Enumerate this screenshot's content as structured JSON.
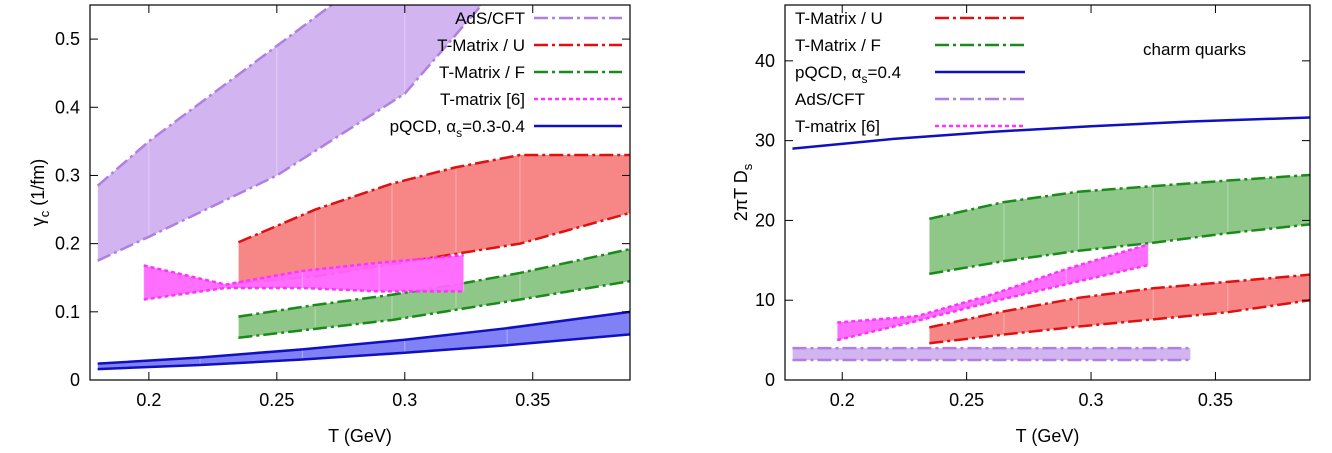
{
  "chart_data": [
    {
      "type": "area",
      "xlabel": "T (GeV)",
      "ylabel": "γc (1/fm)",
      "xlim": [
        0.177,
        0.388
      ],
      "ylim": [
        0,
        0.55
      ],
      "xticks": [
        0.2,
        0.25,
        0.3,
        0.35
      ],
      "yticks": [
        0,
        0.1,
        0.2,
        0.3,
        0.4,
        0.5
      ],
      "xtick_labels": [
        "0.2",
        "0.25",
        "0.3",
        "0.35"
      ],
      "ytick_labels": [
        "0",
        "0.1",
        "0.2",
        "0.3",
        "0.4",
        "0.5"
      ],
      "legend_position": "top-right",
      "series": [
        {
          "name": "AdS/CFT",
          "color": "#d0b0f0",
          "line_color": "#b080e0",
          "dash": "dashdot",
          "x": [
            0.18,
            0.2,
            0.25,
            0.3,
            0.33
          ],
          "lower": [
            0.175,
            0.21,
            0.3,
            0.42,
            0.55
          ],
          "upper": [
            0.285,
            0.35,
            0.49,
            0.63,
            0.72
          ]
        },
        {
          "name": "T-Matrix / U",
          "color": "#f77f7f",
          "line_color": "#e01010",
          "dash": "dashdot",
          "x": [
            0.235,
            0.265,
            0.295,
            0.32,
            0.345,
            0.388
          ],
          "lower": [
            0.142,
            0.152,
            0.17,
            0.185,
            0.2,
            0.245
          ],
          "upper": [
            0.202,
            0.25,
            0.288,
            0.312,
            0.33,
            0.33
          ]
        },
        {
          "name": "T-Matrix / F",
          "color": "#89c482",
          "line_color": "#1a8a1a",
          "dash": "dashdot",
          "x": [
            0.235,
            0.265,
            0.295,
            0.32,
            0.345,
            0.388
          ],
          "lower": [
            0.062,
            0.075,
            0.088,
            0.103,
            0.118,
            0.145
          ],
          "upper": [
            0.093,
            0.11,
            0.125,
            0.14,
            0.157,
            0.192
          ]
        },
        {
          "name": "T-matrix [6]",
          "color": "#ff66ff",
          "line_color": "#ff33ff",
          "dash": "dotted",
          "x": [
            0.198,
            0.23,
            0.26,
            0.29,
            0.323
          ],
          "lower": [
            0.118,
            0.135,
            0.135,
            0.13,
            0.13
          ],
          "upper": [
            0.168,
            0.14,
            0.16,
            0.172,
            0.183
          ]
        },
        {
          "name": "pQCD, αs=0.3-0.4",
          "color": "#7a7af5",
          "line_color": "#1010c0",
          "dash": "solid",
          "x": [
            0.18,
            0.22,
            0.26,
            0.3,
            0.34,
            0.388
          ],
          "lower": [
            0.016,
            0.022,
            0.03,
            0.04,
            0.051,
            0.067
          ],
          "upper": [
            0.024,
            0.033,
            0.045,
            0.059,
            0.076,
            0.1
          ]
        }
      ]
    },
    {
      "type": "area",
      "xlabel": "T (GeV)",
      "ylabel": "2πT Ds",
      "xlim": [
        0.177,
        0.388
      ],
      "ylim": [
        0,
        47
      ],
      "xticks": [
        0.2,
        0.25,
        0.3,
        0.35
      ],
      "yticks": [
        0,
        10,
        20,
        30,
        40
      ],
      "xtick_labels": [
        "0.2",
        "0.25",
        "0.3",
        "0.35"
      ],
      "ytick_labels": [
        "0",
        "10",
        "20",
        "30",
        "40"
      ],
      "annotation": "charm quarks",
      "legend_position": "top-left",
      "series": [
        {
          "name": "T-Matrix / U",
          "color": "#f77f7f",
          "line_color": "#e01010",
          "dash": "dashdot",
          "x": [
            0.235,
            0.265,
            0.295,
            0.325,
            0.355,
            0.388
          ],
          "lower": [
            4.6,
            5.7,
            6.7,
            7.6,
            8.5,
            10.0
          ],
          "upper": [
            6.6,
            8.6,
            10.3,
            11.5,
            12.3,
            13.2
          ]
        },
        {
          "name": "T-Matrix / F",
          "color": "#89c482",
          "line_color": "#1a8a1a",
          "dash": "dashdot",
          "x": [
            0.235,
            0.265,
            0.295,
            0.325,
            0.355,
            0.388
          ],
          "lower": [
            13.3,
            14.9,
            16.2,
            17.2,
            18.4,
            19.5
          ],
          "upper": [
            20.2,
            22.3,
            23.6,
            24.3,
            25.0,
            25.7
          ]
        },
        {
          "name": "pQCD, αs=0.4",
          "color": "#1010c0",
          "line_color": "#1010c0",
          "dash": "solid",
          "x": [
            0.18,
            0.22,
            0.26,
            0.3,
            0.34,
            0.388
          ],
          "values": [
            29.0,
            30.2,
            31.1,
            31.8,
            32.4,
            32.9
          ]
        },
        {
          "name": "AdS/CFT",
          "color": "#d0b0f0",
          "line_color": "#b080e0",
          "dash": "dashdot",
          "x": [
            0.18,
            0.34
          ],
          "lower": [
            2.5,
            2.5
          ],
          "upper": [
            4.0,
            4.0
          ]
        },
        {
          "name": "T-matrix [6]",
          "color": "#ff66ff",
          "line_color": "#ff33ff",
          "dash": "dotted",
          "x": [
            0.198,
            0.23,
            0.26,
            0.29,
            0.323
          ],
          "lower": [
            5.0,
            7.4,
            9.8,
            12.0,
            14.4
          ],
          "upper": [
            7.2,
            8.0,
            10.7,
            13.9,
            17.0
          ]
        }
      ]
    }
  ]
}
